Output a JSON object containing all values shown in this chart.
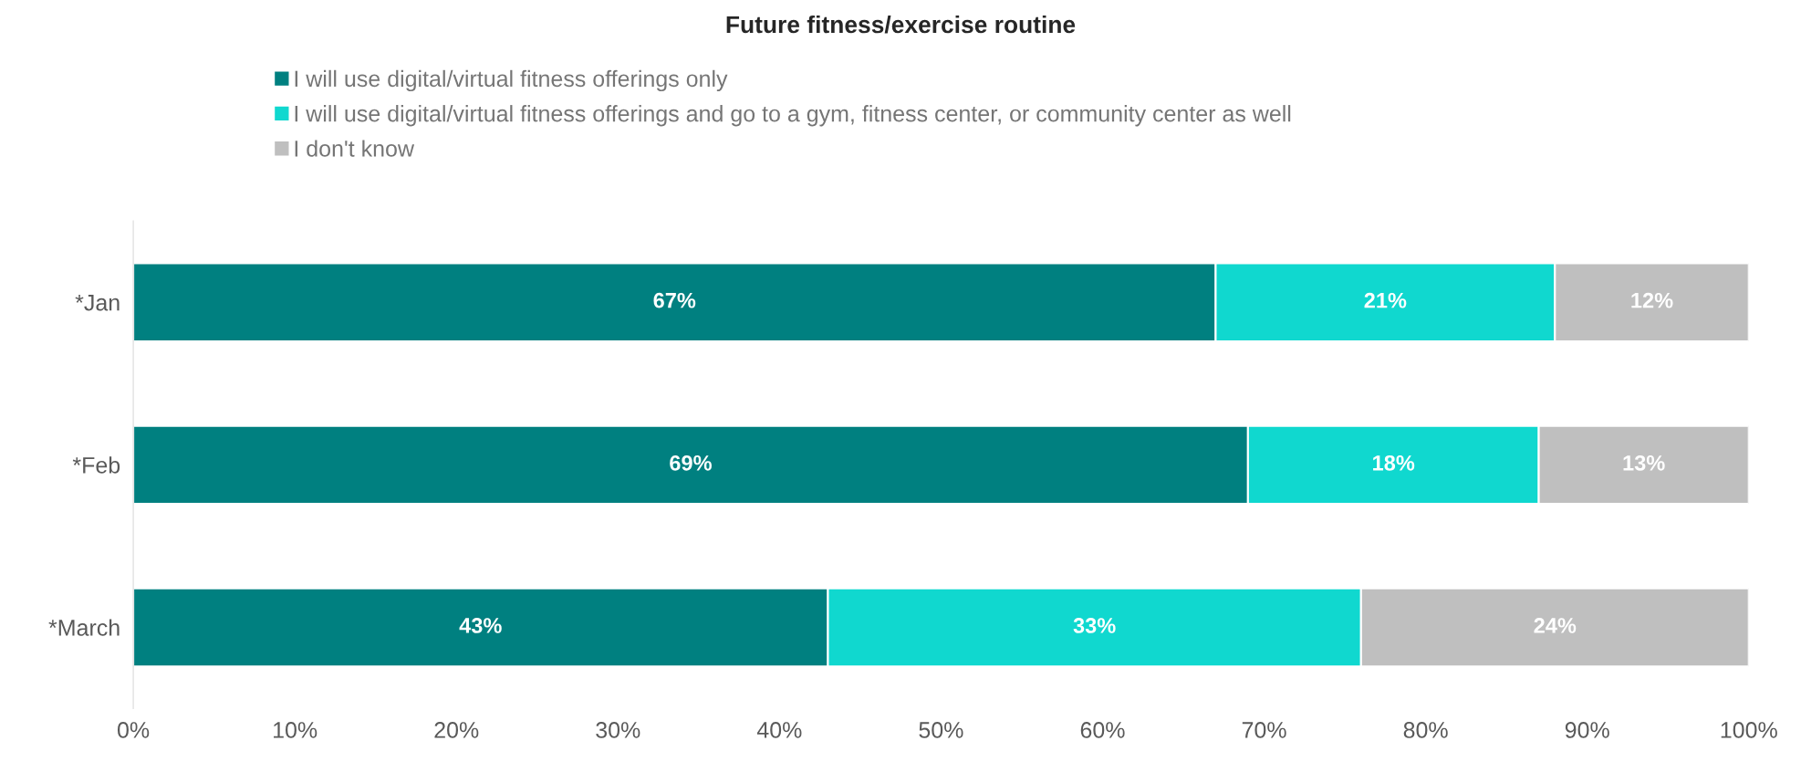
{
  "chart_data": {
    "type": "bar",
    "title": "Future fitness/exercise routine",
    "orientation": "horizontal",
    "stacked": true,
    "categories": [
      "*Jan",
      "*Feb",
      "*March"
    ],
    "series": [
      {
        "name": "I will use digital/virtual fitness offerings only",
        "color": "#008080",
        "values": [
          67,
          69,
          43
        ],
        "value_labels": [
          "67%",
          "69%",
          "43%"
        ]
      },
      {
        "name": "I will use digital/virtual fitness offerings and go to a gym, fitness center, or community center as well",
        "color": "#10d8cf",
        "values": [
          21,
          18,
          33
        ],
        "value_labels": [
          "21%",
          "18%",
          "33%"
        ]
      },
      {
        "name": "I don't know",
        "color": "#bfbfbf",
        "values": [
          12,
          13,
          24
        ],
        "value_labels": [
          "12%",
          "13%",
          "24%"
        ]
      }
    ],
    "xlim": [
      0,
      100
    ],
    "xticks": [
      {
        "value": 0,
        "label": "0%"
      },
      {
        "value": 10,
        "label": "10%"
      },
      {
        "value": 20,
        "label": "20%"
      },
      {
        "value": 30,
        "label": "30%"
      },
      {
        "value": 40,
        "label": "40%"
      },
      {
        "value": 50,
        "label": "50%"
      },
      {
        "value": 60,
        "label": "60%"
      },
      {
        "value": 70,
        "label": "70%"
      },
      {
        "value": 80,
        "label": "80%"
      },
      {
        "value": 90,
        "label": "90%"
      },
      {
        "value": 100,
        "label": "100%"
      }
    ],
    "legend": "top",
    "grid": false
  }
}
